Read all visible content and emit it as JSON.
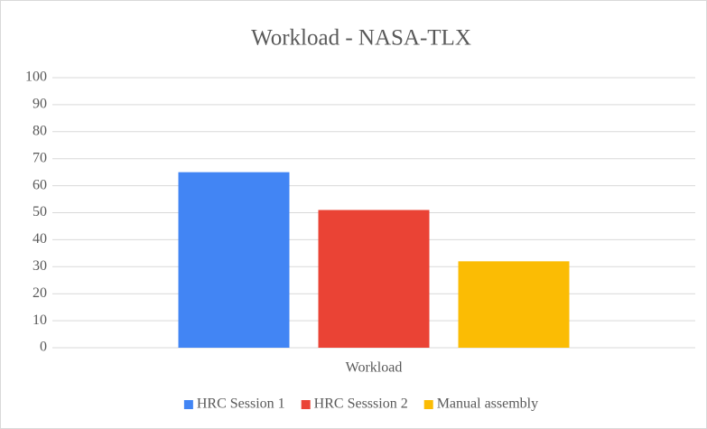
{
  "chart_data": {
    "type": "bar",
    "title": "Workload - NASA-TLX",
    "categories": [
      "Workload"
    ],
    "series": [
      {
        "name": "HRC Session 1",
        "color": "#4285f4",
        "values": [
          65
        ]
      },
      {
        "name": "HRC Sesssion 2",
        "color": "#ea4335",
        "values": [
          51
        ]
      },
      {
        "name": "Manual assembly",
        "color": "#fbbc04",
        "values": [
          32
        ]
      }
    ],
    "ylim": [
      0,
      100
    ],
    "yticks": [
      0,
      10,
      20,
      30,
      40,
      50,
      60,
      70,
      80,
      90,
      100
    ],
    "grid": true,
    "legend": "bottom"
  }
}
